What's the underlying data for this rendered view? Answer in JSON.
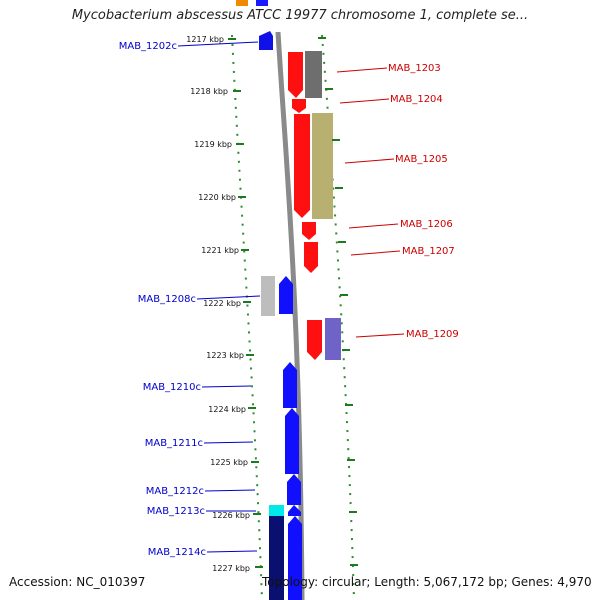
{
  "title": "Mycobacterium abscessus ATCC 19977 chromosome 1, complete se...",
  "accession": "Accession: NC_010397",
  "summary": "Topology: circular; Length: 5,067,172 bp; Genes: 4,970",
  "ticks": [
    "1217 kbp",
    "1218 kbp",
    "1219 kbp",
    "1220 kbp",
    "1221 kbp",
    "1222 kbp",
    "1223 kbp",
    "1224 kbp",
    "1225 kbp",
    "1226 kbp",
    "1227 kbp"
  ],
  "genes_left": [
    {
      "name": "MAB_1202c"
    },
    {
      "name": "MAB_1208c"
    },
    {
      "name": "MAB_1210c"
    },
    {
      "name": "MAB_1211c"
    },
    {
      "name": "MAB_1212c"
    },
    {
      "name": "MAB_1213c"
    },
    {
      "name": "MAB_1214c"
    }
  ],
  "genes_right": [
    {
      "name": "MAB_1203"
    },
    {
      "name": "MAB_1204"
    },
    {
      "name": "MAB_1205"
    },
    {
      "name": "MAB_1206"
    },
    {
      "name": "MAB_1207"
    },
    {
      "name": "MAB_1209"
    }
  ],
  "colors": {
    "forward": "#ff0000",
    "reverse": "#0000ff",
    "backbone": "#8a8a8a",
    "ticks": "#1e7a1e",
    "label_forward": "#cc0000",
    "label_reverse": "#0000cc"
  }
}
